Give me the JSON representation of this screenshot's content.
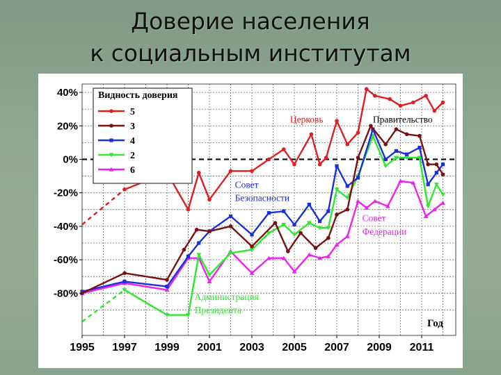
{
  "slide": {
    "title_line1": "Доверие населения",
    "title_line2": "к социальным институтам"
  },
  "chart_data": {
    "type": "line",
    "title": "",
    "xlabel": "Год",
    "ylabel": "",
    "xlim": [
      1995,
      2012.2
    ],
    "ylim": [
      -95,
      45
    ],
    "x_ticks": [
      1995,
      1997,
      1999,
      2001,
      2003,
      2005,
      2007,
      2009,
      2011
    ],
    "y_ticks": [
      40,
      20,
      0,
      -20,
      -40,
      -60,
      -80
    ],
    "y_tick_labels": [
      "40%",
      "20%",
      "0%",
      "-20%",
      "-40%",
      "-60%",
      "-80%"
    ],
    "grid": true,
    "zero_line": "dashed",
    "legend": {
      "title": "Видность доверия",
      "placement": "top-left",
      "entries": [
        {
          "label": "5",
          "color": "#dd1f1f",
          "marker": "circle"
        },
        {
          "label": "3",
          "color": "#7a1010",
          "marker": "circle"
        },
        {
          "label": "4",
          "color": "#1a2fdc",
          "marker": "square"
        },
        {
          "label": "2",
          "color": "#2ee82e",
          "marker": "triangle-down"
        },
        {
          "label": "6",
          "color": "#ee22ee",
          "marker": "triangle-up"
        }
      ]
    },
    "annotations": [
      {
        "text": "Церковь",
        "color": "#dd1f1f",
        "x": 2004.8,
        "y": 22
      },
      {
        "text": "Правительство",
        "color": "#000000",
        "x": 2008.7,
        "y": 22
      },
      {
        "text": "Совет",
        "color": "#1a2fdc",
        "x": 2002.2,
        "y": -17
      },
      {
        "text": "Безопасности",
        "color": "#1a2fdc",
        "x": 2002.2,
        "y": -25
      },
      {
        "text": "Совет",
        "color": "#ee22ee",
        "x": 2008.2,
        "y": -37
      },
      {
        "text": "Федерации",
        "color": "#ee22ee",
        "x": 2008.2,
        "y": -45
      },
      {
        "text": "Администрация",
        "color": "#2ee82e",
        "x": 2000.3,
        "y": -84
      },
      {
        "text": "Президента",
        "color": "#2ee82e",
        "x": 2000.3,
        "y": -92
      }
    ],
    "series": [
      {
        "name": "Церковь",
        "color": "#dd1f1f",
        "marker": "circle",
        "dashed_start": true,
        "x": [
          1995,
          1997,
          1999,
          2000,
          2000.5,
          2001,
          2002,
          2003,
          2003.8,
          2004.5,
          2005,
          2005.8,
          2006.2,
          2006.5,
          2007,
          2007.5,
          2008,
          2008.4,
          2008.8,
          2009.5,
          2010,
          2010.6,
          2011.2,
          2011.6,
          2012
        ],
        "y": [
          -39,
          -18,
          -8,
          -30,
          -8,
          -24,
          -7,
          -7,
          0,
          6,
          -3,
          15,
          -3,
          1,
          23,
          9,
          16,
          42,
          38,
          36,
          32,
          34,
          38,
          29,
          34
        ]
      },
      {
        "name": "Правительство",
        "color": "#7a1010",
        "marker": "circle",
        "x": [
          1995,
          1997,
          1999,
          1999.8,
          2000.4,
          2001,
          2002,
          2003,
          2004.1,
          2004.7,
          2005.3,
          2006,
          2006.6,
          2007,
          2007.5,
          2008,
          2008.6,
          2009.3,
          2009.8,
          2010.3,
          2010.9,
          2011.3,
          2011.7,
          2012
        ],
        "y": [
          -80,
          -68,
          -72,
          -54,
          -42,
          -43,
          -40,
          -52,
          -38,
          -55,
          -44,
          -53,
          -47,
          -33,
          -30,
          1,
          20,
          9,
          18,
          15,
          14,
          -3,
          -3,
          -9
        ]
      },
      {
        "name": "Совет Безопасности",
        "color": "#1a2fdc",
        "marker": "square",
        "x": [
          1995,
          1997,
          1999,
          2000,
          2000.5,
          2001,
          2002,
          2003,
          2003.8,
          2004.5,
          2005,
          2005.7,
          2006.2,
          2006.6,
          2007,
          2007.5,
          2008,
          2008.7,
          2009.3,
          2009.8,
          2010.3,
          2010.9,
          2011.3,
          2011.7,
          2012
        ],
        "y": [
          -79,
          -73,
          -76,
          -58,
          -50,
          -43,
          -34,
          -45,
          -32,
          -31,
          -39,
          -27,
          -37,
          -31,
          -4,
          -16,
          -11,
          18,
          0,
          5,
          3,
          7,
          -15,
          -8,
          -3
        ]
      },
      {
        "name": "Администрация Президента",
        "color": "#2ee82e",
        "marker": "triangle-down",
        "dashed_start": true,
        "x": [
          1995,
          1997,
          1999,
          2000,
          2000.5,
          2001,
          2002,
          2003,
          2003.8,
          2004.5,
          2005,
          2005.7,
          2006.2,
          2006.6,
          2007,
          2007.5,
          2008,
          2008.7,
          2009.3,
          2009.8,
          2010.3,
          2010.9,
          2011.3,
          2011.7,
          2012
        ],
        "y": [
          -97,
          -78,
          -93,
          -93,
          -57,
          -69,
          -56,
          -54,
          -44,
          -39,
          -45,
          -38,
          -41,
          -41,
          -18,
          -23,
          -10,
          14,
          -4,
          1,
          1,
          1,
          -28,
          -15,
          -21
        ]
      },
      {
        "name": "Совет Федерации",
        "color": "#ee22ee",
        "marker": "triangle-up",
        "x": [
          1995,
          1997,
          1999,
          2000,
          2000.5,
          2001,
          2002,
          2003,
          2003.8,
          2004.5,
          2005,
          2005.7,
          2006.2,
          2006.6,
          2007,
          2007.5,
          2008,
          2008.4,
          2008.8,
          2009.4,
          2010,
          2010.6,
          2011.2,
          2011.6,
          2012
        ],
        "y": [
          -80,
          -74,
          -78,
          -59,
          -59,
          -73,
          -55,
          -68,
          -59,
          -59,
          -67,
          -57,
          -59,
          -58,
          -51,
          -46,
          -25,
          -29,
          -25,
          -28,
          -13,
          -14,
          -34,
          -30,
          -26
        ]
      }
    ]
  }
}
